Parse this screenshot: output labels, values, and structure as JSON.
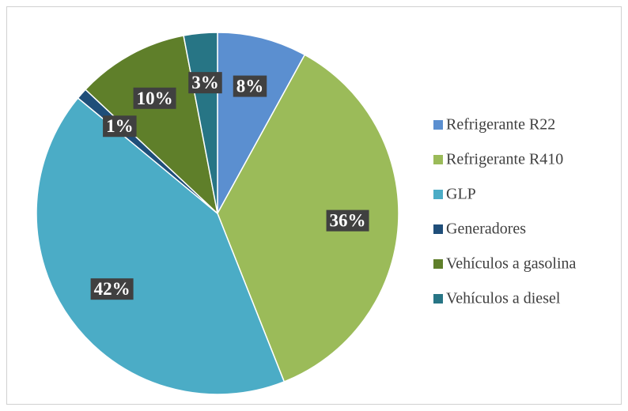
{
  "chart_data": {
    "type": "pie",
    "categories": [
      "Refrigerante R22",
      "Refrigerante R410",
      "GLP",
      "Generadores",
      "Vehículos a gasolina",
      "Vehículos a diesel"
    ],
    "values": [
      8,
      36,
      42,
      1,
      10,
      3
    ],
    "value_labels": [
      "8%",
      "36%",
      "42%",
      "1%",
      "10%",
      "3%"
    ],
    "colors": [
      "#5b8fd0",
      "#9bbb59",
      "#4bacc6",
      "#1f4e79",
      "#5f7f2a",
      "#277585"
    ],
    "legend": "right"
  }
}
